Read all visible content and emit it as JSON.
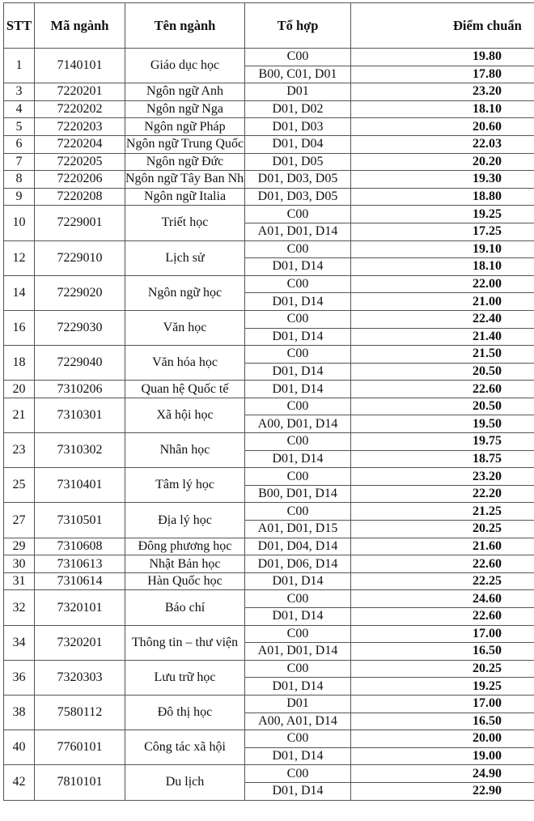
{
  "headers": {
    "stt": "STT",
    "code": "Mã ngành",
    "name": "Tên ngành",
    "combo": "Tổ hợp",
    "score": "Điểm chuẩn"
  },
  "rows": [
    {
      "stt": "1",
      "code": "7140101",
      "name": "Giáo dục học",
      "entries": [
        {
          "combo": "C00",
          "score": "19.80"
        },
        {
          "combo": "B00, C01, D01",
          "score": "17.80"
        }
      ]
    },
    {
      "stt": "3",
      "code": "7220201",
      "name": "Ngôn ngữ Anh",
      "entries": [
        {
          "combo": "D01",
          "score": "23.20"
        }
      ]
    },
    {
      "stt": "4",
      "code": "7220202",
      "name": "Ngôn ngữ Nga",
      "entries": [
        {
          "combo": "D01, D02",
          "score": "18.10"
        }
      ]
    },
    {
      "stt": "5",
      "code": "7220203",
      "name": "Ngôn ngữ Pháp",
      "entries": [
        {
          "combo": "D01, D03",
          "score": "20.60"
        }
      ]
    },
    {
      "stt": "6",
      "code": "7220204",
      "name": "Ngôn ngữ Trung Quốc",
      "entries": [
        {
          "combo": "D01, D04",
          "score": "22.03"
        }
      ]
    },
    {
      "stt": "7",
      "code": "7220205",
      "name": "Ngôn ngữ Đức",
      "entries": [
        {
          "combo": "D01, D05",
          "score": "20.20"
        }
      ]
    },
    {
      "stt": "8",
      "code": "7220206",
      "name": "Ngôn ngữ Tây Ban Nha",
      "entries": [
        {
          "combo": "D01, D03, D05",
          "score": "19.30"
        }
      ]
    },
    {
      "stt": "9",
      "code": "7220208",
      "name": "Ngôn ngữ Italia",
      "entries": [
        {
          "combo": "D01, D03, D05",
          "score": "18.80"
        }
      ]
    },
    {
      "stt": "10",
      "code": "7229001",
      "name": "Triết học",
      "entries": [
        {
          "combo": "C00",
          "score": "19.25"
        },
        {
          "combo": "A01, D01, D14",
          "score": "17.25"
        }
      ]
    },
    {
      "stt": "12",
      "code": "7229010",
      "name": "Lịch sử",
      "entries": [
        {
          "combo": "C00",
          "score": "19.10"
        },
        {
          "combo": "D01, D14",
          "score": "18.10"
        }
      ]
    },
    {
      "stt": "14",
      "code": "7229020",
      "name": "Ngôn ngữ học",
      "entries": [
        {
          "combo": "C00",
          "score": "22.00"
        },
        {
          "combo": "D01, D14",
          "score": "21.00"
        }
      ]
    },
    {
      "stt": "16",
      "code": "7229030",
      "name": "Văn học",
      "entries": [
        {
          "combo": "C00",
          "score": "22.40"
        },
        {
          "combo": "D01, D14",
          "score": "21.40"
        }
      ]
    },
    {
      "stt": "18",
      "code": "7229040",
      "name": "Văn hóa học",
      "entries": [
        {
          "combo": "C00",
          "score": "21.50"
        },
        {
          "combo": "D01, D14",
          "score": "20.50"
        }
      ]
    },
    {
      "stt": "20",
      "code": "7310206",
      "name": "Quan hệ Quốc tế",
      "entries": [
        {
          "combo": "D01, D14",
          "score": "22.60"
        }
      ]
    },
    {
      "stt": "21",
      "code": "7310301",
      "name": "Xã hội học",
      "entries": [
        {
          "combo": "C00",
          "score": "20.50"
        },
        {
          "combo": "A00, D01, D14",
          "score": "19.50"
        }
      ]
    },
    {
      "stt": "23",
      "code": "7310302",
      "name": "Nhân học",
      "entries": [
        {
          "combo": "C00",
          "score": "19.75"
        },
        {
          "combo": "D01, D14",
          "score": "18.75"
        }
      ]
    },
    {
      "stt": "25",
      "code": "7310401",
      "name": "Tâm lý học",
      "entries": [
        {
          "combo": "C00",
          "score": "23.20"
        },
        {
          "combo": "B00, D01, D14",
          "score": "22.20"
        }
      ]
    },
    {
      "stt": "27",
      "code": "7310501",
      "name": "Địa lý học",
      "entries": [
        {
          "combo": "C00",
          "score": "21.25"
        },
        {
          "combo": "A01, D01, D15",
          "score": "20.25"
        }
      ]
    },
    {
      "stt": "29",
      "code": "7310608",
      "name": "Đông phương học",
      "entries": [
        {
          "combo": "D01, D04, D14",
          "score": "21.60"
        }
      ]
    },
    {
      "stt": "30",
      "code": "7310613",
      "name": "Nhật Bản học",
      "entries": [
        {
          "combo": "D01, D06, D14",
          "score": "22.60"
        }
      ]
    },
    {
      "stt": "31",
      "code": "7310614",
      "name": "Hàn Quốc học",
      "entries": [
        {
          "combo": "D01, D14",
          "score": "22.25"
        }
      ]
    },
    {
      "stt": "32",
      "code": "7320101",
      "name": "Báo chí",
      "entries": [
        {
          "combo": "C00",
          "score": "24.60"
        },
        {
          "combo": "D01, D14",
          "score": "22.60"
        }
      ]
    },
    {
      "stt": "34",
      "code": "7320201",
      "name": "Thông tin – thư viện",
      "entries": [
        {
          "combo": "C00",
          "score": "17.00"
        },
        {
          "combo": "A01, D01, D14",
          "score": "16.50"
        }
      ]
    },
    {
      "stt": "36",
      "code": "7320303",
      "name": "Lưu trữ học",
      "entries": [
        {
          "combo": "C00",
          "score": "20.25"
        },
        {
          "combo": "D01, D14",
          "score": "19.25"
        }
      ]
    },
    {
      "stt": "38",
      "code": "7580112",
      "name": "Đô thị học",
      "entries": [
        {
          "combo": "D01",
          "score": "17.00"
        },
        {
          "combo": "A00, A01, D14",
          "score": "16.50"
        }
      ]
    },
    {
      "stt": "40",
      "code": "7760101",
      "name": "Công tác xã hội",
      "entries": [
        {
          "combo": "C00",
          "score": "20.00"
        },
        {
          "combo": "D01, D14",
          "score": "19.00"
        }
      ]
    },
    {
      "stt": "42",
      "code": "7810101",
      "name": "Du lịch",
      "entries": [
        {
          "combo": "C00",
          "score": "24.90"
        },
        {
          "combo": "D01, D14",
          "score": "22.90"
        }
      ]
    }
  ]
}
